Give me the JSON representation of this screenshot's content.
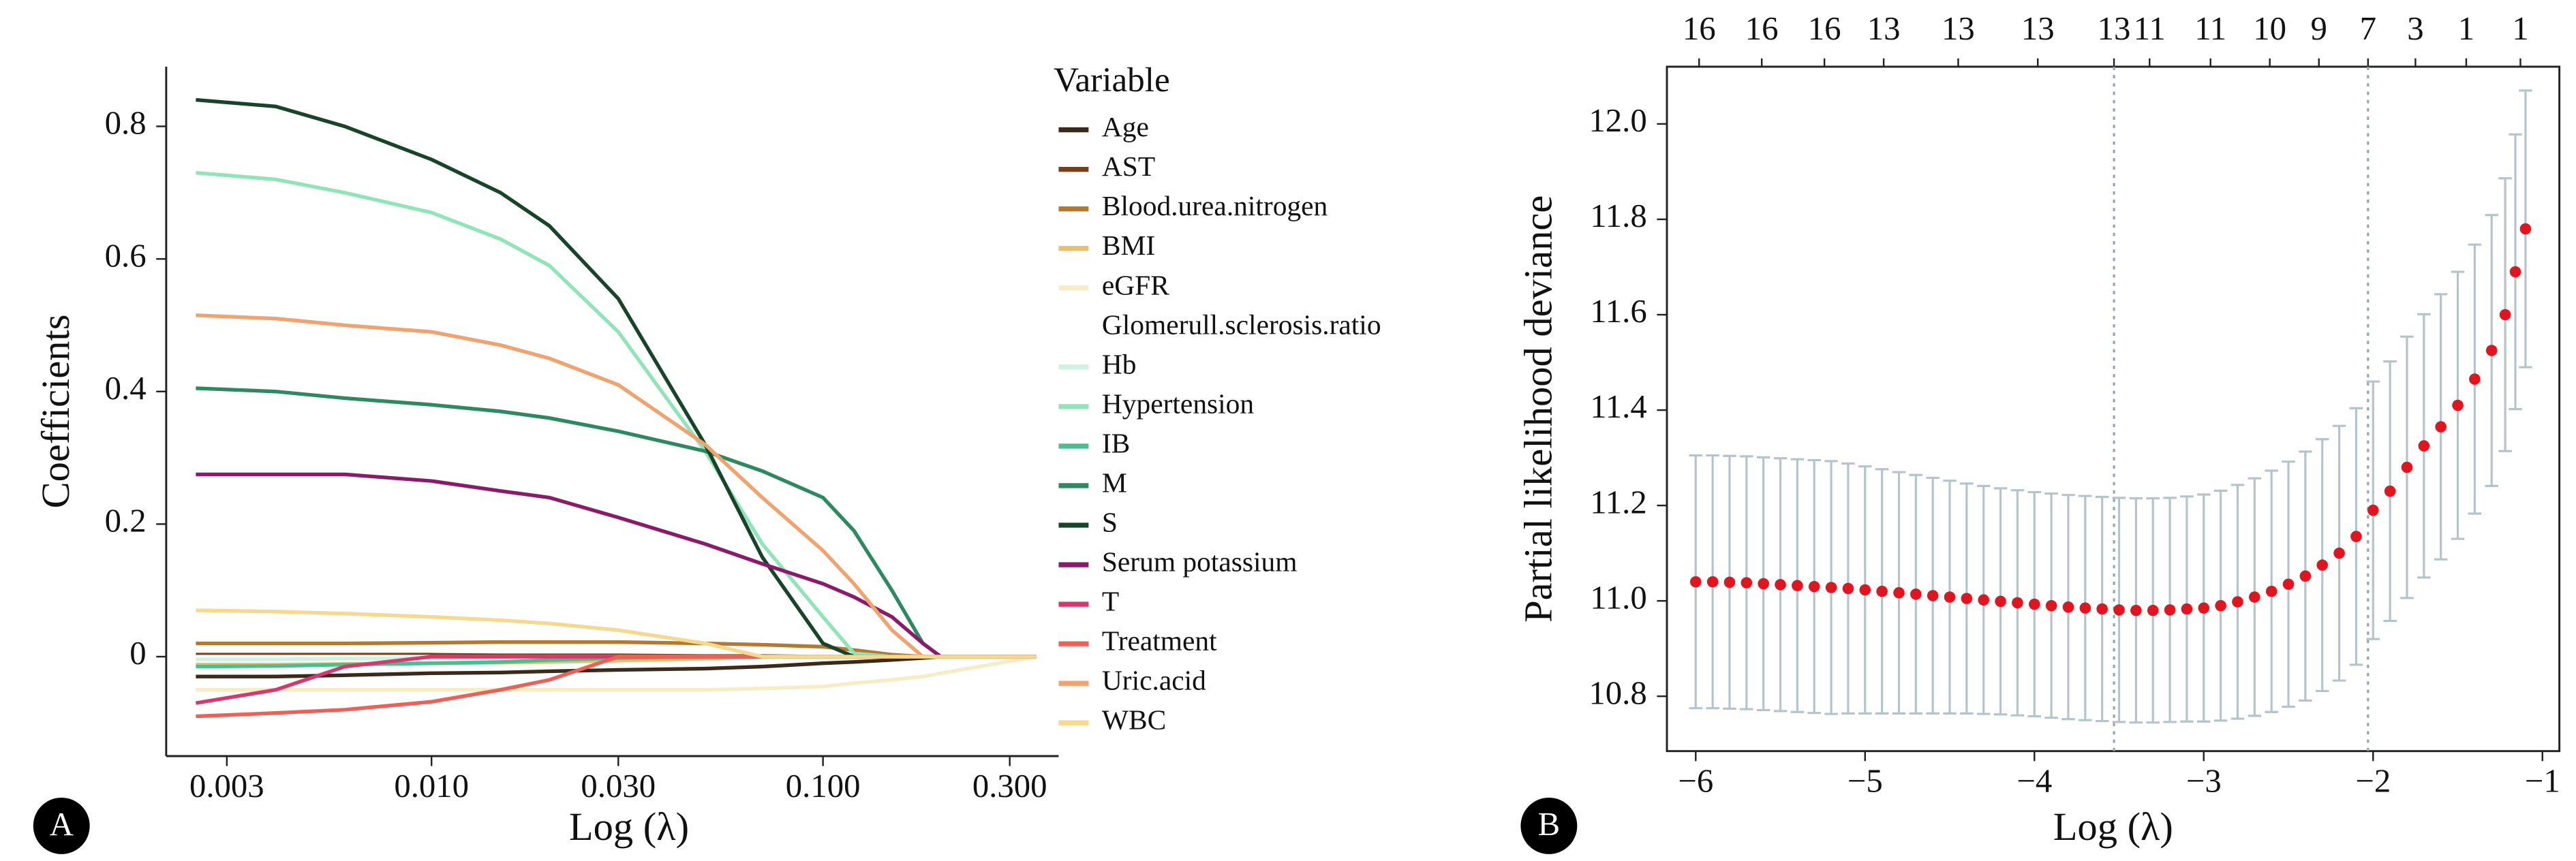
{
  "chart_data": [
    {
      "type": "line",
      "panel_label": "A",
      "xlabel": "Log (λ)",
      "ylabel": "Coefficients",
      "legend_title": "Variable",
      "xscale": "log",
      "x": [
        0.0025,
        0.004,
        0.006,
        0.01,
        0.015,
        0.02,
        0.03,
        0.05,
        0.07,
        0.1,
        0.12,
        0.15,
        0.18,
        0.2,
        0.35
      ],
      "xlim": [
        0.0021,
        0.4
      ],
      "xticks": [
        0.003,
        {
          "value": 0.01,
          "label": "0.010"
        },
        {
          "value": 0.03,
          "label": "0.030"
        },
        {
          "value": 0.1,
          "label": "0.100"
        },
        {
          "value": 0.3,
          "label": "0.300"
        }
      ],
      "ylim": [
        -0.15,
        0.89
      ],
      "yticks": [
        0,
        0.2,
        0.4,
        0.6,
        0.8
      ],
      "series": [
        {
          "name": "Age",
          "color": "#3b2a1a",
          "values": [
            -0.03,
            -0.03,
            -0.028,
            -0.025,
            -0.024,
            -0.022,
            -0.02,
            -0.018,
            -0.015,
            -0.01,
            -0.008,
            -0.005,
            -0.002,
            0,
            0
          ]
        },
        {
          "name": "AST",
          "color": "#7a3e12",
          "values": [
            0.003,
            0.003,
            0.003,
            0.003,
            0.002,
            0.002,
            0.002,
            0.001,
            0.001,
            0,
            0,
            0,
            0,
            0,
            0
          ]
        },
        {
          "name": "Blood.urea.nitrogen",
          "color": "#b5782c",
          "values": [
            0.02,
            0.02,
            0.02,
            0.021,
            0.022,
            0.022,
            0.022,
            0.02,
            0.018,
            0.015,
            0.01,
            0.003,
            0,
            0,
            0
          ]
        },
        {
          "name": "BMI",
          "color": "#e8bf6a",
          "values": [
            -0.012,
            -0.012,
            -0.011,
            -0.01,
            -0.009,
            -0.008,
            -0.006,
            -0.003,
            0,
            0,
            0,
            0,
            0,
            0,
            0
          ]
        },
        {
          "name": "eGFR",
          "color": "#f7edc4",
          "values": [
            -0.05,
            -0.05,
            -0.05,
            -0.05,
            -0.05,
            -0.05,
            -0.05,
            -0.05,
            -0.048,
            -0.045,
            -0.04,
            -0.035,
            -0.03,
            -0.025,
            0
          ]
        },
        {
          "name": "Glomerull.sclerosis.ratio",
          "color": "#ffffff",
          "values": [
            0,
            0,
            0,
            0,
            0,
            0,
            0,
            0,
            0,
            0,
            0,
            0,
            0,
            0,
            0
          ]
        },
        {
          "name": "Hb",
          "color": "#cdf3e3",
          "values": [
            -0.004,
            -0.004,
            -0.003,
            -0.002,
            -0.001,
            0,
            0,
            0,
            0,
            0,
            0,
            0,
            0,
            0,
            0
          ]
        },
        {
          "name": "Hypertension",
          "color": "#8ee6b8",
          "values": [
            0.73,
            0.72,
            0.7,
            0.67,
            0.63,
            0.59,
            0.49,
            0.31,
            0.17,
            0.06,
            0.005,
            0,
            0,
            0,
            0
          ]
        },
        {
          "name": "IB",
          "color": "#45c08e",
          "values": [
            -0.015,
            -0.014,
            -0.012,
            -0.01,
            -0.008,
            -0.005,
            -0.002,
            0,
            0,
            0,
            0,
            0,
            0,
            0,
            0
          ]
        },
        {
          "name": "M",
          "color": "#2b8a5f",
          "values": [
            0.405,
            0.4,
            0.39,
            0.38,
            0.37,
            0.36,
            0.34,
            0.31,
            0.28,
            0.24,
            0.19,
            0.1,
            0.02,
            0,
            0
          ]
        },
        {
          "name": "S",
          "color": "#17452a",
          "values": [
            0.84,
            0.83,
            0.8,
            0.75,
            0.7,
            0.65,
            0.54,
            0.32,
            0.15,
            0.02,
            0,
            0,
            0,
            0,
            0
          ]
        },
        {
          "name": "Serum potassium",
          "color": "#8b1a6b",
          "values": [
            0.275,
            0.275,
            0.275,
            0.265,
            0.25,
            0.24,
            0.21,
            0.17,
            0.14,
            0.11,
            0.09,
            0.06,
            0.02,
            0,
            0
          ]
        },
        {
          "name": "T",
          "color": "#d8366e",
          "values": [
            -0.07,
            -0.05,
            -0.015,
            0,
            0,
            0,
            0,
            0,
            0,
            0,
            0,
            0,
            0,
            0,
            0
          ]
        },
        {
          "name": "Treatment",
          "color": "#ef5f55",
          "values": [
            -0.09,
            -0.085,
            -0.08,
            -0.068,
            -0.05,
            -0.035,
            0,
            0,
            0,
            0,
            0,
            0,
            0,
            0,
            0
          ]
        },
        {
          "name": "Uric.acid",
          "color": "#f2a26d",
          "values": [
            0.515,
            0.51,
            0.5,
            0.49,
            0.47,
            0.45,
            0.41,
            0.32,
            0.24,
            0.16,
            0.11,
            0.04,
            0,
            0,
            0
          ]
        },
        {
          "name": "WBC",
          "color": "#f6d98c",
          "values": [
            0.07,
            0.068,
            0.065,
            0.06,
            0.055,
            0.05,
            0.04,
            0.02,
            0,
            0,
            0,
            0,
            0,
            0,
            0
          ]
        }
      ]
    },
    {
      "type": "errorbar",
      "panel_label": "B",
      "xlabel": "Log (λ)",
      "ylabel": "Partial likelihood deviance",
      "color": "#e3141e",
      "errorbar_color": "#b3c4ca",
      "vlines": [
        -3.53,
        -2.03
      ],
      "vline_color": "#8fa8a8",
      "xlim": [
        -6.17,
        -0.9
      ],
      "xticks": [
        {
          "value": -6,
          "label": "−6"
        },
        {
          "value": -5,
          "label": "−5"
        },
        {
          "value": -4,
          "label": "−4"
        },
        {
          "value": -3,
          "label": "−3"
        },
        {
          "value": -2,
          "label": "−2"
        },
        {
          "value": -1,
          "label": "−1"
        }
      ],
      "ylim": [
        10.685,
        12.12
      ],
      "yticks": [
        10.8,
        {
          "value": 11,
          "label": "11.0"
        },
        11.2,
        11.4,
        11.6,
        11.8,
        {
          "value": 12,
          "label": "12.0"
        }
      ],
      "top_ticks": [
        {
          "value": -5.98,
          "label": "16"
        },
        {
          "value": -5.61,
          "label": "16"
        },
        {
          "value": -5.24,
          "label": "16"
        },
        {
          "value": -4.89,
          "label": "13"
        },
        {
          "value": -4.45,
          "label": "13"
        },
        {
          "value": -3.98,
          "label": "13"
        },
        {
          "value": -3.53,
          "label": "13"
        },
        {
          "value": -3.32,
          "label": "11"
        },
        {
          "value": -2.96,
          "label": "11"
        },
        {
          "value": -2.61,
          "label": "10"
        },
        {
          "value": -2.32,
          "label": "9"
        },
        {
          "value": -2.03,
          "label": "7"
        },
        {
          "value": -1.75,
          "label": "3"
        },
        {
          "value": -1.45,
          "label": "1"
        },
        {
          "value": -1.13,
          "label": "1"
        }
      ],
      "x": [
        -6.0,
        -5.9,
        -5.8,
        -5.7,
        -5.6,
        -5.5,
        -5.4,
        -5.3,
        -5.2,
        -5.1,
        -5.0,
        -4.9,
        -4.8,
        -4.7,
        -4.6,
        -4.5,
        -4.4,
        -4.3,
        -4.2,
        -4.1,
        -4.0,
        -3.9,
        -3.8,
        -3.7,
        -3.6,
        -3.5,
        -3.4,
        -3.3,
        -3.2,
        -3.1,
        -3.0,
        -2.9,
        -2.8,
        -2.7,
        -2.6,
        -2.5,
        -2.4,
        -2.3,
        -2.2,
        -2.1,
        -2.0,
        -1.9,
        -1.8,
        -1.7,
        -1.6,
        -1.5,
        -1.4,
        -1.3,
        -1.22,
        -1.16,
        -1.1
      ],
      "values": [
        11.04,
        11.04,
        11.039,
        11.038,
        11.036,
        11.034,
        11.032,
        11.03,
        11.028,
        11.026,
        11.023,
        11.02,
        11.017,
        11.014,
        11.011,
        11.008,
        11.005,
        11.002,
        10.999,
        10.996,
        10.993,
        10.99,
        10.987,
        10.985,
        10.983,
        10.981,
        10.98,
        10.98,
        10.981,
        10.983,
        10.985,
        10.99,
        10.998,
        11.008,
        11.02,
        11.035,
        11.052,
        11.075,
        11.1,
        11.135,
        11.19,
        11.23,
        11.28,
        11.325,
        11.365,
        11.41,
        11.465,
        11.525,
        11.6,
        11.69,
        11.78
      ],
      "errors": [
        0.265,
        0.265,
        0.265,
        0.265,
        0.265,
        0.265,
        0.265,
        0.265,
        0.265,
        0.262,
        0.259,
        0.256,
        0.253,
        0.25,
        0.247,
        0.244,
        0.241,
        0.239,
        0.237,
        0.236,
        0.235,
        0.235,
        0.235,
        0.235,
        0.235,
        0.235,
        0.235,
        0.235,
        0.235,
        0.236,
        0.238,
        0.241,
        0.245,
        0.249,
        0.253,
        0.257,
        0.261,
        0.264,
        0.267,
        0.269,
        0.27,
        0.272,
        0.274,
        0.276,
        0.278,
        0.28,
        0.282,
        0.284,
        0.286,
        0.288,
        0.29
      ]
    }
  ]
}
